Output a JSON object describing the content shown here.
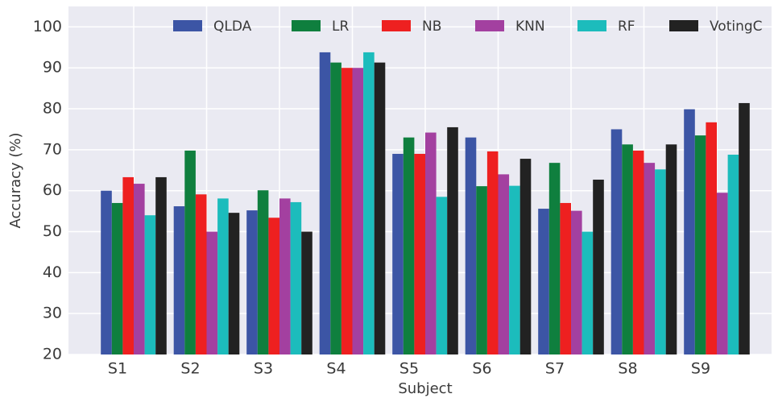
{
  "chart_data": {
    "type": "bar",
    "x_label": "Subject",
    "y_label": "Accuracy (%)",
    "categories": [
      "S1",
      "S2",
      "S3",
      "S4",
      "S5",
      "S6",
      "S7",
      "S8",
      "S9"
    ],
    "series": [
      {
        "name": "QLDA",
        "color": "#3c55a5",
        "values": [
          60,
          56.2,
          55.2,
          93.8,
          69,
          73,
          55.6,
          75,
          79.9
        ]
      },
      {
        "name": "LR",
        "color": "#0f7f3e",
        "values": [
          57,
          69.8,
          60.1,
          91.3,
          73,
          61.1,
          66.8,
          71.3,
          73.5
        ]
      },
      {
        "name": "NB",
        "color": "#ee2020",
        "values": [
          63.3,
          59.1,
          53.4,
          90,
          69,
          69.6,
          57,
          69.8,
          76.7
        ]
      },
      {
        "name": "KNN",
        "color": "#a340a0",
        "values": [
          61.7,
          50,
          58.1,
          90,
          74.2,
          64,
          55.1,
          66.8,
          59.5
        ]
      },
      {
        "name": "RF",
        "color": "#1cbcbc",
        "values": [
          54,
          58.1,
          57.2,
          93.8,
          58.5,
          61.2,
          50,
          65.2,
          68.8
        ]
      },
      {
        "name": "VotingC",
        "color": "#222222",
        "values": [
          63.3,
          54.6,
          50,
          91.3,
          75.5,
          67.8,
          62.7,
          71.3,
          81.4
        ]
      }
    ],
    "ylim": [
      20,
      105
    ],
    "yticks": [
      20,
      30,
      40,
      50,
      60,
      70,
      80,
      90,
      100
    ],
    "grid": true,
    "legend": "top"
  }
}
